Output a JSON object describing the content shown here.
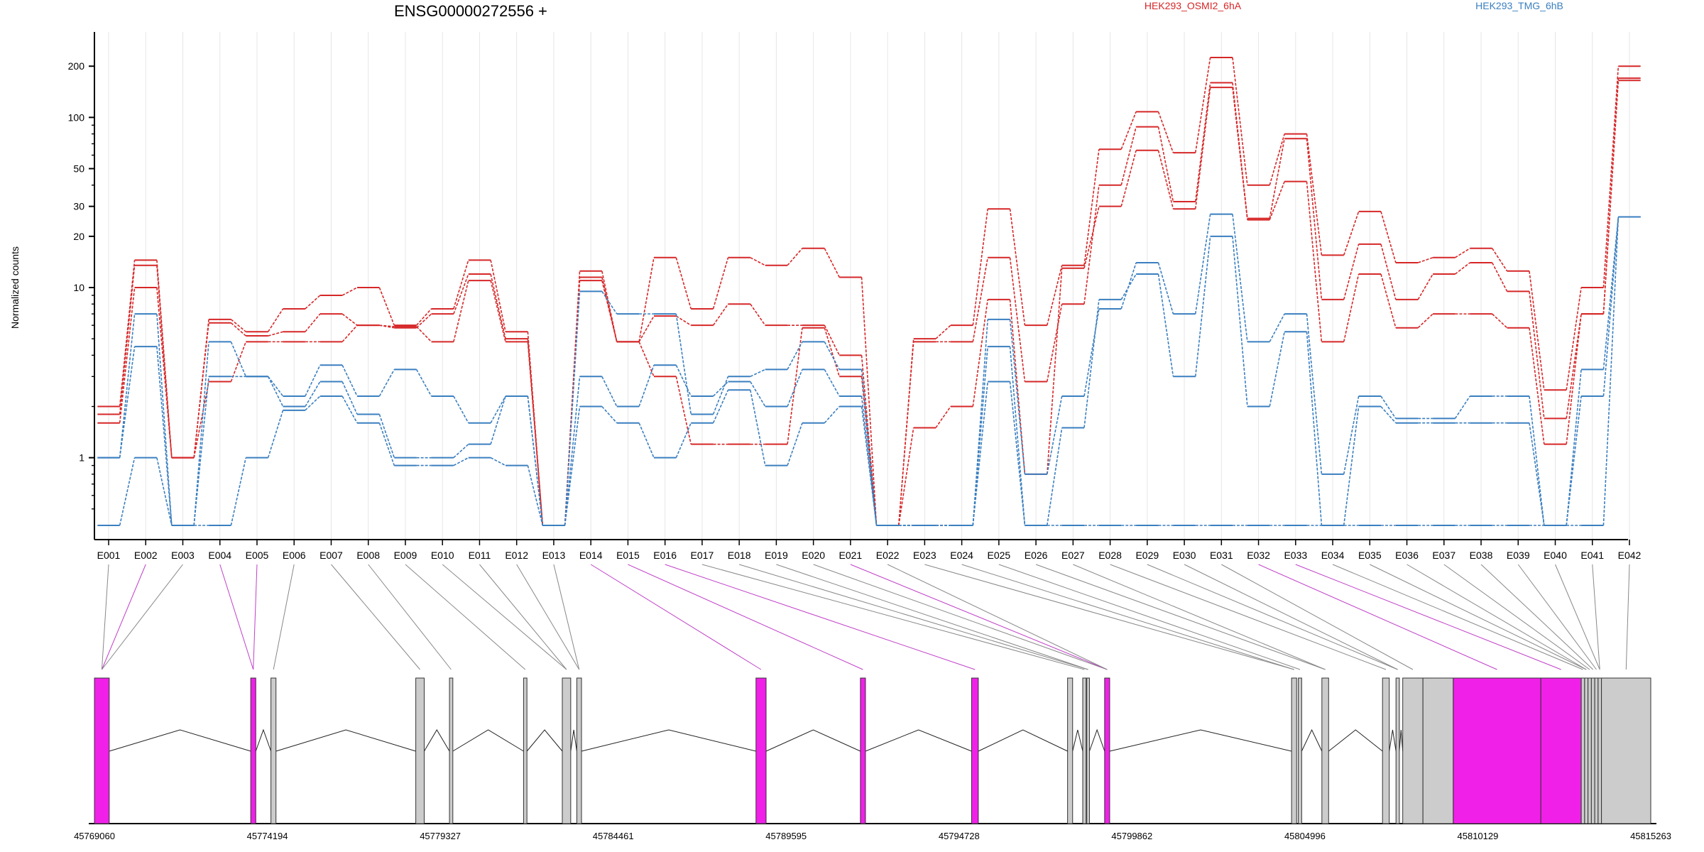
{
  "chart_data": {
    "type": "line",
    "title": "ENSG00000272556 +",
    "ylabel": "Normalized counts",
    "xlabel": "",
    "y_scale": "log",
    "ylim": [
      0.4,
      250
    ],
    "y_ticks": [
      1,
      10,
      20,
      30,
      50,
      100,
      200
    ],
    "y_tick_labels": [
      "1",
      "10",
      "20",
      "30",
      "50",
      "100",
      "200"
    ],
    "grid": "vertical lines at each exon",
    "legend_placement": "top-right",
    "legend": [
      {
        "label": "HEK293_OSMI2_6hA",
        "color": "#d62728"
      },
      {
        "label": "HEK293_TMG_6hB",
        "color": "#3a7fc0"
      }
    ],
    "categories": [
      "E001",
      "E002",
      "E003",
      "E004",
      "E005",
      "E006",
      "E007",
      "E008",
      "E009",
      "E010",
      "E011",
      "E012",
      "E013",
      "E014",
      "E015",
      "E016",
      "E017",
      "E018",
      "E019",
      "E020",
      "E021",
      "E022",
      "E023",
      "E024",
      "E025",
      "E026",
      "E027",
      "E028",
      "E029",
      "E030",
      "E031",
      "E032",
      "E033",
      "E034",
      "E035",
      "E036",
      "E037",
      "E038",
      "E039",
      "E040",
      "E041",
      "E042"
    ],
    "series": [
      {
        "group": "HEK293_OSMI2_6hA",
        "color": "#d62728",
        "values": [
          2.0,
          14.5,
          1.0,
          6.5,
          5.5,
          7.5,
          9.0,
          10.0,
          6.0,
          7.5,
          14.5,
          5.5,
          0.4,
          12.5,
          4.8,
          15.0,
          7.5,
          15.0,
          13.5,
          17.0,
          11.5,
          0.4,
          5.0,
          6.0,
          29.0,
          6.0,
          13.5,
          65.0,
          108.0,
          62.0,
          225.0,
          40.0,
          80.0,
          15.5,
          28.0,
          14.0,
          15.0,
          17.0,
          12.5,
          2.5,
          10.0,
          200.0
        ]
      },
      {
        "group": "HEK293_OSMI2_6hA",
        "color": "#d62728",
        "values": [
          1.8,
          13.5,
          1.0,
          6.2,
          5.2,
          5.5,
          7.0,
          6.0,
          5.8,
          7.0,
          12.0,
          5.0,
          0.4,
          11.5,
          4.8,
          6.8,
          6.0,
          8.0,
          6.0,
          6.0,
          4.0,
          0.4,
          4.8,
          4.8,
          15.0,
          2.8,
          8.0,
          40.0,
          88.0,
          32.0,
          160.0,
          25.5,
          75.0,
          8.5,
          18.0,
          8.5,
          12.0,
          14.0,
          9.5,
          1.7,
          7.0,
          170.0
        ]
      },
      {
        "group": "HEK293_OSMI2_6hA",
        "color": "#d62728",
        "values": [
          1.6,
          10.0,
          1.0,
          2.8,
          4.8,
          4.8,
          4.8,
          6.0,
          5.9,
          4.8,
          11.0,
          4.8,
          0.4,
          11.0,
          4.8,
          3.0,
          1.2,
          1.2,
          1.2,
          5.8,
          3.0,
          0.4,
          1.5,
          2.0,
          8.5,
          0.8,
          13.0,
          30.0,
          64.0,
          29.0,
          150.0,
          25.0,
          42.0,
          4.8,
          12.0,
          5.8,
          7.0,
          7.0,
          5.8,
          1.2,
          7.0,
          165.0
        ]
      },
      {
        "group": "HEK293_TMG_6hB",
        "color": "#3a7fc0",
        "values": [
          1.0,
          7.0,
          0.4,
          3.0,
          3.0,
          2.3,
          3.5,
          2.3,
          3.3,
          2.3,
          1.6,
          2.3,
          0.4,
          9.5,
          7.0,
          7.0,
          1.8,
          3.0,
          3.3,
          4.8,
          3.3,
          0.4,
          0.4,
          0.4,
          6.5,
          0.8,
          2.3,
          7.5,
          14.0,
          7.0,
          27.0,
          4.8,
          7.0,
          0.8,
          2.3,
          1.7,
          1.7,
          2.3,
          2.3,
          0.4,
          3.3,
          26.0
        ]
      },
      {
        "group": "HEK293_TMG_6hB",
        "color": "#3a7fc0",
        "values": [
          1.0,
          4.5,
          0.4,
          4.8,
          3.0,
          2.0,
          2.8,
          1.8,
          1.0,
          1.0,
          1.2,
          2.3,
          0.4,
          3.0,
          2.0,
          3.5,
          2.3,
          2.8,
          2.0,
          3.3,
          2.3,
          0.4,
          0.4,
          0.4,
          4.5,
          0.4,
          1.5,
          8.5,
          12.0,
          3.0,
          20.0,
          2.0,
          5.5,
          0.4,
          2.0,
          1.6,
          1.6,
          1.6,
          1.6,
          0.4,
          2.3,
          26.0
        ]
      },
      {
        "group": "HEK293_TMG_6hB",
        "color": "#3a7fc0",
        "values": [
          0.4,
          1.0,
          0.4,
          0.4,
          1.0,
          1.9,
          2.3,
          1.6,
          0.9,
          0.9,
          1.0,
          0.9,
          0.4,
          2.0,
          1.6,
          1.0,
          1.6,
          2.5,
          0.9,
          1.6,
          2.0,
          0.4,
          0.4,
          0.4,
          2.8,
          0.4,
          0.4,
          0.4,
          0.4,
          0.4,
          0.4,
          0.4,
          0.4,
          0.4,
          0.4,
          0.4,
          0.4,
          0.4,
          0.4,
          0.4,
          0.4,
          26.0
        ]
      }
    ]
  },
  "gene_model": {
    "coordinate_labels": [
      "45769060",
      "45774194",
      "45779327",
      "45784461",
      "45789595",
      "45794728",
      "45799862",
      "45804996",
      "45810129",
      "45815263"
    ],
    "coordinate_range": [
      45769060,
      45815263
    ],
    "highlight_color": "#f020e8",
    "exon_color": "#cccccc",
    "exons": [
      {
        "start": 45769060,
        "end": 45769500,
        "highlight": true
      },
      {
        "start": 45773700,
        "end": 45773850,
        "highlight": true
      },
      {
        "start": 45774300,
        "end": 45774450,
        "highlight": false
      },
      {
        "start": 45778600,
        "end": 45778850,
        "highlight": false
      },
      {
        "start": 45779600,
        "end": 45779700,
        "highlight": false
      },
      {
        "start": 45781800,
        "end": 45781900,
        "highlight": false
      },
      {
        "start": 45782950,
        "end": 45783200,
        "highlight": false
      },
      {
        "start": 45783380,
        "end": 45783520,
        "highlight": false
      },
      {
        "start": 45788700,
        "end": 45789000,
        "highlight": true
      },
      {
        "start": 45791800,
        "end": 45791950,
        "highlight": true
      },
      {
        "start": 45795100,
        "end": 45795300,
        "highlight": true
      },
      {
        "start": 45797950,
        "end": 45798100,
        "highlight": false
      },
      {
        "start": 45798400,
        "end": 45798500,
        "highlight": false
      },
      {
        "start": 45798520,
        "end": 45798600,
        "highlight": false
      },
      {
        "start": 45799050,
        "end": 45799200,
        "highlight": true
      },
      {
        "start": 45804600,
        "end": 45804750,
        "highlight": false
      },
      {
        "start": 45804800,
        "end": 45804900,
        "highlight": false
      },
      {
        "start": 45805500,
        "end": 45805700,
        "highlight": false
      },
      {
        "start": 45807300,
        "end": 45807500,
        "highlight": false
      },
      {
        "start": 45807700,
        "end": 45807800,
        "highlight": false
      },
      {
        "start": 45807900,
        "end": 45808500,
        "highlight": false
      },
      {
        "start": 45808500,
        "end": 45809400,
        "highlight": false
      },
      {
        "start": 45809400,
        "end": 45812000,
        "highlight": true
      },
      {
        "start": 45812000,
        "end": 45813200,
        "highlight": true
      },
      {
        "start": 45813200,
        "end": 45813300,
        "highlight": false
      },
      {
        "start": 45813300,
        "end": 45813400,
        "highlight": false
      },
      {
        "start": 45813400,
        "end": 45813500,
        "highlight": false
      },
      {
        "start": 45813500,
        "end": 45813600,
        "highlight": false
      },
      {
        "start": 45813600,
        "end": 45813700,
        "highlight": false
      },
      {
        "start": 45813700,
        "end": 45813800,
        "highlight": false
      },
      {
        "start": 45813800,
        "end": 45815263,
        "highlight": false
      }
    ],
    "connector_exon_index": [
      0,
      0,
      0,
      1,
      1,
      2,
      3,
      4,
      5,
      6,
      6,
      7,
      7,
      8,
      9,
      10,
      12,
      13,
      13,
      14,
      14,
      14,
      15,
      15,
      16,
      17,
      17,
      18,
      19,
      19,
      20,
      22,
      23,
      24,
      25,
      25,
      26,
      27,
      28,
      29,
      29,
      30
    ],
    "connector_highlight": [
      false,
      true,
      false,
      true,
      true,
      false,
      false,
      false,
      false,
      false,
      false,
      false,
      false,
      true,
      true,
      true,
      false,
      false,
      false,
      false,
      true,
      false,
      false,
      false,
      false,
      false,
      false,
      false,
      false,
      false,
      false,
      true,
      true,
      false,
      false,
      false,
      false,
      false,
      false,
      false,
      false,
      false
    ]
  }
}
